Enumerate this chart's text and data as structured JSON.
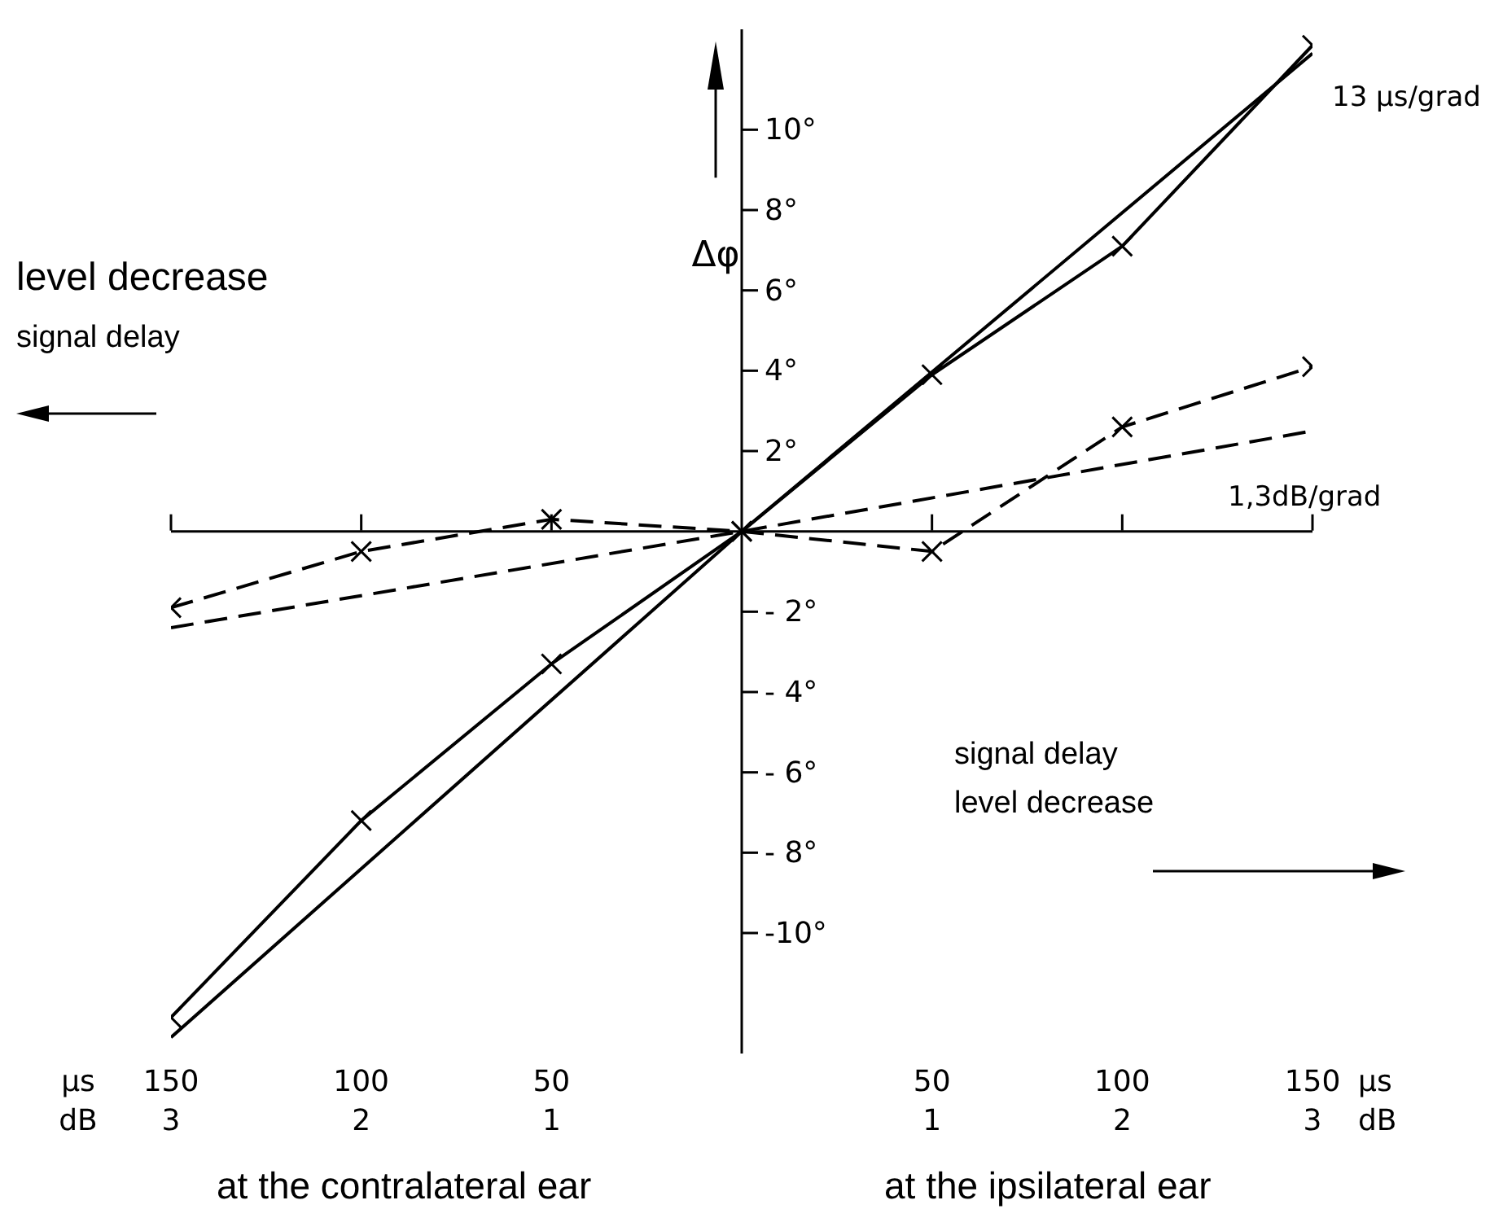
{
  "chart_data": {
    "type": "line",
    "xlabel": "μs",
    "x2label": "dB",
    "ylabel": "Δφ",
    "x": [
      -150,
      -100,
      -50,
      0,
      50,
      100,
      150
    ],
    "xlim": [
      -150,
      150
    ],
    "xticks": [
      {
        "value": -150,
        "label": "150"
      },
      {
        "value": -100,
        "label": "100"
      },
      {
        "value": -50,
        "label": "50"
      },
      {
        "value": 50,
        "label": "50"
      },
      {
        "value": 100,
        "label": "100"
      },
      {
        "value": 150,
        "label": "150"
      }
    ],
    "x2lim": [
      -3,
      3
    ],
    "x2ticks": [
      {
        "value": -3,
        "label": "3"
      },
      {
        "value": -2,
        "label": "2"
      },
      {
        "value": -1,
        "label": "1"
      },
      1,
      2,
      3
    ],
    "ylim": [
      -13,
      12.5
    ],
    "yticks": [
      {
        "value": -10,
        "label": "-10°"
      },
      {
        "value": -8,
        "label": "- 8°"
      },
      {
        "value": -6,
        "label": "- 6°"
      },
      {
        "value": -4,
        "label": "- 4°"
      },
      {
        "value": -2,
        "label": "- 2°"
      },
      {
        "value": 2,
        "label": "2°"
      },
      {
        "value": 4,
        "label": "4°"
      },
      {
        "value": 6,
        "label": "6°"
      },
      {
        "value": 8,
        "label": "8°"
      },
      {
        "value": 10,
        "label": "10°"
      }
    ],
    "series": [
      {
        "color": "#000000",
        "marker": "cross",
        "line_style": "solid",
        "values": [
          -12.1,
          -7.2,
          -3.3,
          0,
          3.9,
          7.1,
          12.1
        ]
      },
      {
        "name": "13 μs/grad",
        "color": "#000000",
        "line_style": "solid",
        "x": [
          -150,
          0,
          150
        ],
        "values": [
          -12.6,
          0,
          11.9
        ]
      },
      {
        "color": "#000000",
        "marker": "cross",
        "line_style": "dashed",
        "values": [
          -1.9,
          -0.5,
          0.3,
          0,
          -0.5,
          2.6,
          4.1
        ]
      },
      {
        "name": "1,3dB/grad",
        "color": "#000000",
        "line_style": "dashed",
        "x": [
          -150,
          0,
          150
        ],
        "values": [
          -2.4,
          0,
          2.5
        ]
      }
    ],
    "annotations": [
      "level decrease",
      "signal delay",
      "signal delay",
      "level decrease",
      "at the contralateral ear",
      "at the ipsilateral ear"
    ]
  }
}
